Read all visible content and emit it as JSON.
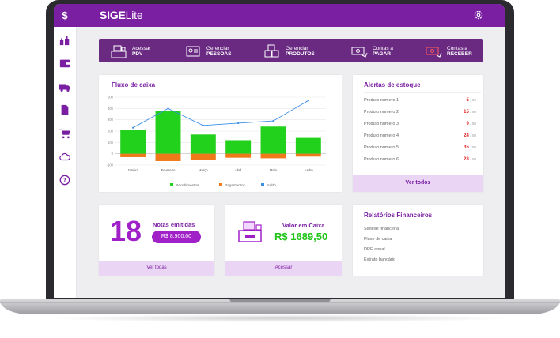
{
  "app": {
    "logo_main": "SIGE",
    "logo_sub": "Lite"
  },
  "sidebar": {
    "currency_symbol": "$"
  },
  "quick_actions": [
    {
      "line1": "Acessar",
      "line2": "PDV"
    },
    {
      "line1": "Gerenciar",
      "line2": "PESSOAS"
    },
    {
      "line1": "Gerenciar",
      "line2": "PRODUTOS"
    },
    {
      "line1": "Contas a",
      "line2": "PAGAR"
    },
    {
      "line1": "Contas a",
      "line2": "RECEBER"
    }
  ],
  "cashflow": {
    "title": "Fluxo de caixa",
    "legend": [
      "Recebimentos",
      "Pagamentos",
      "Saldo"
    ]
  },
  "chart_data": {
    "type": "bar",
    "categories": [
      "Janeiro",
      "Fevereiro",
      "Março",
      "Abril",
      "Maio",
      "Junho"
    ],
    "series": [
      {
        "name": "Recebimentos",
        "values": [
          210,
          380,
          170,
          120,
          240,
          140
        ]
      },
      {
        "name": "Pagamentos",
        "values": [
          -30,
          -65,
          -55,
          -35,
          -40,
          -25
        ]
      },
      {
        "name": "Saldo",
        "values": [
          230,
          400,
          250,
          270,
          290,
          470
        ]
      }
    ],
    "yticks": [
      "500",
      "400",
      "300",
      "200",
      "100",
      "0",
      "-100"
    ],
    "ylim": [
      -100,
      500
    ],
    "colors": {
      "Recebimentos": "#21d11c",
      "Pagamentos": "#f07a1a",
      "Saldo": "#3a8ee6"
    }
  },
  "stock": {
    "title": "Alertas de estoque",
    "items": [
      {
        "name": "Produto número 1",
        "qty": "5",
        "max": "/ 50"
      },
      {
        "name": "Produto número 2",
        "qty": "15",
        "max": "/ 50"
      },
      {
        "name": "Produto número 3",
        "qty": "9",
        "max": "/ 50"
      },
      {
        "name": "Produto número 4",
        "qty": "24",
        "max": "/ 50"
      },
      {
        "name": "Produto número 5",
        "qty": "35",
        "max": "/ 50"
      },
      {
        "name": "Produto número 6",
        "qty": "28",
        "max": "/ 50"
      }
    ],
    "see_all": "Ver todos"
  },
  "invoices": {
    "count": "18",
    "label": "Notas emitidas",
    "amount": "R$ 8.900,00",
    "see_all": "Ver todas"
  },
  "cash": {
    "label": "Valor em Caixa",
    "value": "R$ 1689,50",
    "access": "Acessar"
  },
  "reports": {
    "title": "Relatórios Financeiros",
    "items": [
      "Síntese financeira",
      "Fluxo de caixa",
      "DRE anual",
      "Extrato bancário"
    ]
  }
}
